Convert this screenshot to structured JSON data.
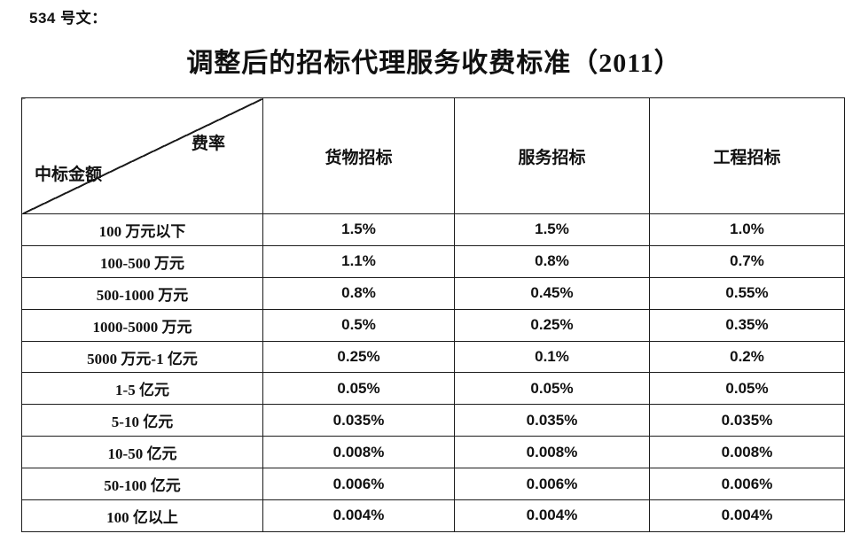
{
  "page": {
    "doc_label": "534 号文：",
    "title": "调整后的招标代理服务收费标准（2011）"
  },
  "table": {
    "corner": {
      "top_right": "费率",
      "bottom_left": "中标金额"
    },
    "columns": [
      "货物招标",
      "服务招标",
      "工程招标"
    ],
    "rows": [
      {
        "label": "100 万元以下",
        "values": [
          "1.5%",
          "1.5%",
          "1.0%"
        ]
      },
      {
        "label": "100-500 万元",
        "values": [
          "1.1%",
          "0.8%",
          "0.7%"
        ]
      },
      {
        "label": "500-1000 万元",
        "values": [
          "0.8%",
          "0.45%",
          "0.55%"
        ]
      },
      {
        "label": "1000-5000 万元",
        "values": [
          "0.5%",
          "0.25%",
          "0.35%"
        ]
      },
      {
        "label": "5000 万元-1 亿元",
        "values": [
          "0.25%",
          "0.1%",
          "0.2%"
        ]
      },
      {
        "label": "1-5 亿元",
        "values": [
          "0.05%",
          "0.05%",
          "0.05%"
        ]
      },
      {
        "label": "5-10 亿元",
        "values": [
          "0.035%",
          "0.035%",
          "0.035%"
        ]
      },
      {
        "label": "10-50 亿元",
        "values": [
          "0.008%",
          "0.008%",
          "0.008%"
        ]
      },
      {
        "label": "50-100 亿元",
        "values": [
          "0.006%",
          "0.006%",
          "0.006%"
        ]
      },
      {
        "label": "100 亿以上",
        "values": [
          "0.004%",
          "0.004%",
          "0.004%"
        ]
      }
    ]
  },
  "colors": {
    "text": "#111111",
    "border": "#1c1c1c",
    "background": "#ffffff"
  }
}
